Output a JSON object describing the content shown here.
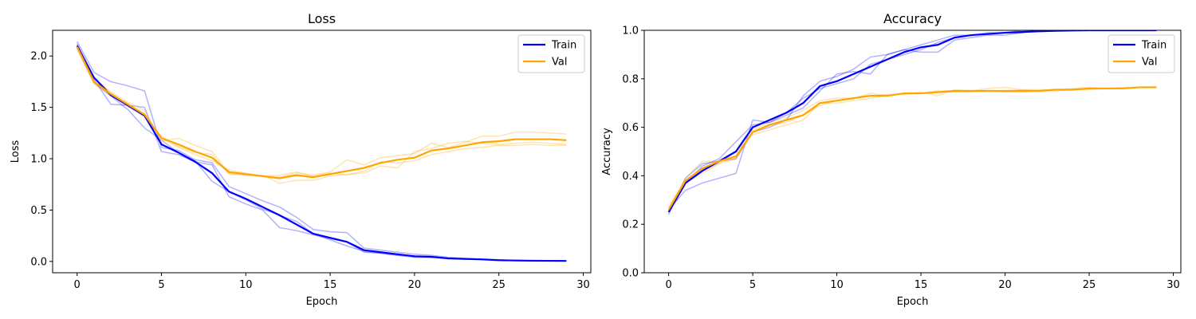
{
  "chart_data": [
    {
      "type": "line",
      "title": "Loss",
      "xlabel": "Epoch",
      "ylabel": "Loss",
      "xlim": [
        -1.45,
        30.45
      ],
      "ylim": [
        -0.11,
        2.25
      ],
      "xticks": [
        0,
        5,
        10,
        15,
        20,
        25,
        30
      ],
      "yticks": [
        0.0,
        0.5,
        1.0,
        1.5,
        2.0
      ],
      "yticks_labels": [
        "0.0",
        "0.5",
        "1.0",
        "1.5",
        "2.0"
      ],
      "legend": "top-right",
      "x": [
        0,
        1,
        2,
        3,
        4,
        5,
        6,
        7,
        8,
        9,
        10,
        11,
        12,
        13,
        14,
        15,
        16,
        17,
        18,
        19,
        20,
        21,
        22,
        23,
        24,
        25,
        26,
        27,
        28,
        29
      ],
      "series": [
        {
          "name": "Train",
          "color": "#0000ff",
          "values": [
            2.1,
            1.79,
            1.62,
            1.52,
            1.42,
            1.14,
            1.06,
            0.97,
            0.86,
            0.68,
            0.61,
            0.53,
            0.45,
            0.36,
            0.27,
            0.23,
            0.19,
            0.11,
            0.09,
            0.07,
            0.05,
            0.045,
            0.03,
            0.025,
            0.02,
            0.012,
            0.009,
            0.007,
            0.006,
            0.005
          ],
          "runs": [
            [
              2.14,
              1.84,
              1.75,
              1.71,
              1.66,
              1.11,
              1.08,
              0.99,
              0.96,
              0.73,
              0.66,
              0.59,
              0.53,
              0.43,
              0.31,
              0.29,
              0.28,
              0.13,
              0.11,
              0.09,
              0.07,
              0.06,
              0.04,
              0.03,
              0.02,
              0.015,
              0.01,
              0.008,
              0.006,
              0.005
            ],
            [
              2.12,
              1.77,
              1.53,
              1.52,
              1.5,
              1.07,
              1.04,
              0.97,
              0.94,
              0.63,
              0.56,
              0.5,
              0.33,
              0.3,
              0.26,
              0.22,
              0.19,
              0.09,
              0.08,
              0.06,
              0.04,
              0.04,
              0.03,
              0.02,
              0.02,
              0.012,
              0.009,
              0.007,
              0.006,
              0.005
            ],
            [
              2.08,
              1.74,
              1.61,
              1.48,
              1.3,
              1.18,
              1.06,
              0.98,
              0.78,
              0.68,
              0.6,
              0.51,
              0.45,
              0.39,
              0.27,
              0.21,
              0.15,
              0.1,
              0.08,
              0.06,
              0.05,
              0.04,
              0.03,
              0.025,
              0.02,
              0.012,
              0.01,
              0.007,
              0.006,
              0.005
            ]
          ]
        },
        {
          "name": "Val",
          "color": "#ffa500",
          "values": [
            2.09,
            1.75,
            1.63,
            1.53,
            1.43,
            1.2,
            1.14,
            1.07,
            1.01,
            0.87,
            0.85,
            0.83,
            0.81,
            0.84,
            0.82,
            0.85,
            0.88,
            0.91,
            0.96,
            0.99,
            1.01,
            1.08,
            1.1,
            1.13,
            1.16,
            1.17,
            1.19,
            1.19,
            1.19,
            1.18
          ],
          "runs": [
            [
              2.11,
              1.78,
              1.65,
              1.55,
              1.47,
              1.17,
              1.2,
              1.13,
              1.07,
              0.86,
              0.84,
              0.83,
              0.82,
              0.86,
              0.84,
              0.87,
              0.99,
              0.94,
              1.01,
              1.03,
              1.05,
              1.15,
              1.11,
              1.16,
              1.22,
              1.22,
              1.26,
              1.26,
              1.25,
              1.24
            ],
            [
              2.09,
              1.75,
              1.63,
              1.51,
              1.41,
              1.22,
              1.12,
              1.06,
              1.04,
              0.85,
              0.84,
              0.84,
              0.76,
              0.79,
              0.79,
              0.83,
              0.85,
              0.86,
              0.93,
              0.91,
              1.07,
              1.1,
              1.15,
              1.17,
              1.15,
              1.14,
              1.15,
              1.16,
              1.15,
              1.14
            ],
            [
              2.06,
              1.73,
              1.61,
              1.52,
              1.41,
              1.2,
              1.11,
              1.04,
              0.98,
              0.89,
              0.86,
              0.83,
              0.84,
              0.87,
              0.83,
              0.86,
              0.84,
              0.88,
              0.97,
              0.96,
              0.98,
              1.04,
              1.07,
              1.1,
              1.11,
              1.13,
              1.13,
              1.14,
              1.13,
              1.13
            ]
          ]
        }
      ]
    },
    {
      "type": "line",
      "title": "Accuracy",
      "xlabel": "Epoch",
      "ylabel": "Accuracy",
      "xlim": [
        -1.45,
        30.45
      ],
      "ylim": [
        0,
        1
      ],
      "xticks": [
        0,
        5,
        10,
        15,
        20,
        25,
        30
      ],
      "yticks": [
        0.0,
        0.2,
        0.4,
        0.6,
        0.8,
        1.0
      ],
      "yticks_labels": [
        "0.0",
        "0.2",
        "0.4",
        "0.6",
        "0.8",
        "1.0"
      ],
      "legend": "top-right",
      "x": [
        0,
        1,
        2,
        3,
        4,
        5,
        6,
        7,
        8,
        9,
        10,
        11,
        12,
        13,
        14,
        15,
        16,
        17,
        18,
        19,
        20,
        21,
        22,
        23,
        24,
        25,
        26,
        27,
        28,
        29
      ],
      "series": [
        {
          "name": "Train",
          "color": "#0000ff",
          "values": [
            0.25,
            0.37,
            0.42,
            0.46,
            0.5,
            0.6,
            0.63,
            0.66,
            0.7,
            0.77,
            0.79,
            0.82,
            0.85,
            0.88,
            0.91,
            0.93,
            0.94,
            0.97,
            0.98,
            0.985,
            0.99,
            0.993,
            0.996,
            0.998,
            0.999,
            1.0,
            1.0,
            1.0,
            1.0,
            1.0
          ],
          "runs": [
            [
              0.26,
              0.34,
              0.37,
              0.39,
              0.41,
              0.63,
              0.62,
              0.65,
              0.68,
              0.75,
              0.82,
              0.83,
              0.82,
              0.9,
              0.92,
              0.91,
              0.91,
              0.96,
              0.97,
              0.98,
              0.98,
              0.99,
              1.0,
              1.0,
              1.0,
              1.0,
              1.0,
              1.0,
              1.0,
              1.0
            ],
            [
              0.24,
              0.39,
              0.45,
              0.46,
              0.47,
              0.58,
              0.6,
              0.63,
              0.73,
              0.79,
              0.81,
              0.84,
              0.89,
              0.9,
              0.92,
              0.94,
              0.96,
              0.98,
              0.98,
              0.99,
              0.99,
              1.0,
              1.0,
              1.0,
              1.0,
              1.0,
              1.0,
              1.0,
              1.0,
              1.0
            ],
            [
              0.25,
              0.37,
              0.44,
              0.47,
              0.54,
              0.61,
              0.62,
              0.66,
              0.72,
              0.76,
              0.78,
              0.8,
              0.86,
              0.88,
              0.9,
              0.92,
              0.95,
              0.97,
              0.98,
              0.985,
              0.99,
              0.99,
              1.0,
              1.0,
              1.0,
              1.0,
              1.0,
              1.0,
              1.0,
              1.0
            ]
          ]
        },
        {
          "name": "Val",
          "color": "#ffa500",
          "values": [
            0.26,
            0.38,
            0.43,
            0.46,
            0.48,
            0.58,
            0.61,
            0.63,
            0.65,
            0.7,
            0.71,
            0.72,
            0.73,
            0.73,
            0.74,
            0.74,
            0.745,
            0.75,
            0.75,
            0.75,
            0.75,
            0.75,
            0.75,
            0.755,
            0.755,
            0.76,
            0.76,
            0.76,
            0.765,
            0.765
          ],
          "runs": [
            [
              0.27,
              0.39,
              0.46,
              0.46,
              0.47,
              0.59,
              0.62,
              0.64,
              0.67,
              0.71,
              0.72,
              0.72,
              0.74,
              0.73,
              0.74,
              0.745,
              0.73,
              0.755,
              0.75,
              0.76,
              0.765,
              0.755,
              0.755,
              0.755,
              0.76,
              0.765,
              0.76,
              0.76,
              0.765,
              0.765
            ],
            [
              0.26,
              0.37,
              0.42,
              0.45,
              0.5,
              0.57,
              0.59,
              0.61,
              0.63,
              0.7,
              0.7,
              0.71,
              0.72,
              0.73,
              0.74,
              0.74,
              0.745,
              0.745,
              0.745,
              0.75,
              0.745,
              0.745,
              0.75,
              0.75,
              0.755,
              0.755,
              0.76,
              0.76,
              0.765,
              0.765
            ],
            [
              0.25,
              0.37,
              0.41,
              0.45,
              0.47,
              0.58,
              0.61,
              0.62,
              0.65,
              0.69,
              0.71,
              0.72,
              0.73,
              0.735,
              0.735,
              0.74,
              0.75,
              0.75,
              0.75,
              0.75,
              0.75,
              0.755,
              0.75,
              0.755,
              0.755,
              0.76,
              0.76,
              0.765,
              0.765,
              0.765
            ]
          ]
        }
      ]
    }
  ]
}
